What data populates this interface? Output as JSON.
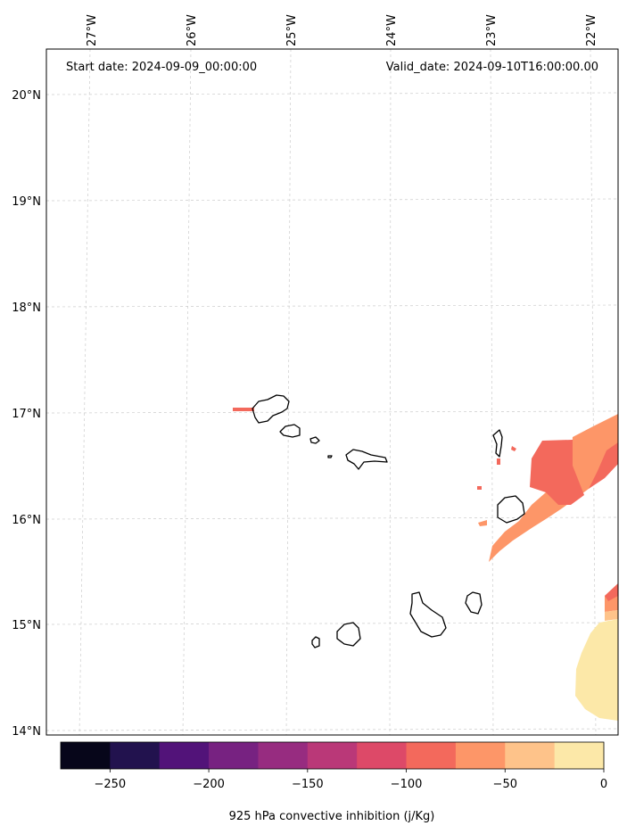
{
  "header": {
    "start_date": "Start date: 2024-09-09_00:00:00",
    "valid_date": "Valid_date: 2024-09-10T16:00:00.00"
  },
  "map": {
    "lon_ticks": [
      "27°W",
      "26°W",
      "25°W",
      "24°W",
      "23°W",
      "22°W"
    ],
    "lat_ticks": [
      "20°N",
      "19°N",
      "18°N",
      "17°N",
      "16°N",
      "15°N",
      "14°N"
    ],
    "gridlines": "dashed light gray",
    "coastline_color": "#000000"
  },
  "colorbar": {
    "label": "925 hPa convective inhibition (j/Kg)",
    "tick_labels": [
      "−250",
      "−200",
      "−150",
      "−100",
      "−50",
      "0"
    ],
    "range": [
      -275,
      0
    ],
    "colormap": "magma",
    "colors": [
      "#07061a",
      "#22124e",
      "#521379",
      "#772281",
      "#972c80",
      "#ba3878",
      "#dd4968",
      "#f3695c",
      "#fd9668",
      "#fec38a",
      "#fce8a8"
    ]
  },
  "fields": [
    {
      "name": "cin_-100_to_-75",
      "color": "#f3695c"
    },
    {
      "name": "cin_-75_to_-50",
      "color": "#fd9668"
    },
    {
      "name": "cin_-25_to_0",
      "color": "#fce8a8"
    },
    {
      "name": "cin_-125_to_-100",
      "color": "#dd4968"
    }
  ]
}
